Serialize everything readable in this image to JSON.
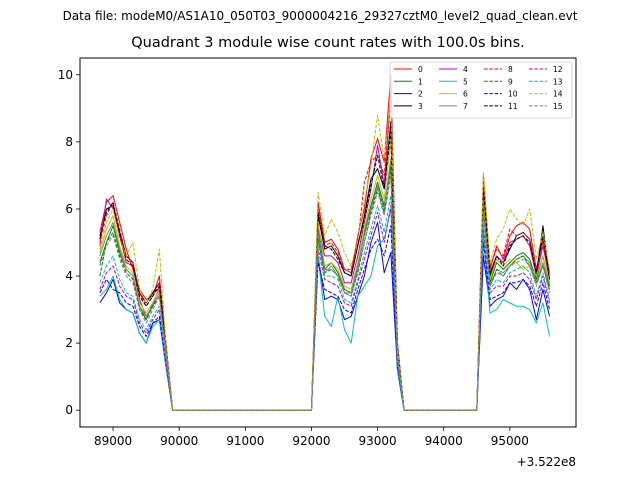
{
  "header": {
    "data_file": "Data file: modeM0/AS1A10_050T03_9000004216_29327cztM0_level2_quad_clean.evt",
    "title": "Quadrant 3 module wise count rates with 100.0s bins."
  },
  "chart_data": {
    "type": "line",
    "title": "Quadrant 3 module wise count rates with 100.0s bins.",
    "xlabel": "",
    "ylabel": "",
    "x_offset_label": "+3.522e8",
    "xlim": [
      88500,
      96000
    ],
    "ylim": [
      -0.5,
      10.5
    ],
    "xticks": [
      89000,
      90000,
      91000,
      92000,
      93000,
      94000,
      95000
    ],
    "xtick_labels": [
      "89000",
      "90000",
      "91000",
      "92000",
      "93000",
      "94000",
      "95000"
    ],
    "yticks": [
      0,
      2,
      4,
      6,
      8,
      10
    ],
    "ytick_labels": [
      "0",
      "2",
      "4",
      "6",
      "8",
      "10"
    ],
    "grid": false,
    "legend_position": "top-right",
    "legend_columns": 4,
    "x": [
      88800,
      88900,
      89000,
      89100,
      89200,
      89300,
      89400,
      89500,
      89600,
      89700,
      89800,
      89900,
      90000,
      92000,
      92100,
      92200,
      92300,
      92400,
      92500,
      92600,
      92700,
      92800,
      92900,
      93000,
      93100,
      93200,
      93300,
      93400,
      94500,
      94600,
      94700,
      94800,
      94900,
      95000,
      95100,
      95200,
      95300,
      95400,
      95500,
      95600
    ],
    "series": [
      {
        "name": "0",
        "color": "#ff0000",
        "dash": "solid",
        "values": [
          5.3,
          6.2,
          6.4,
          5.6,
          4.8,
          4.2,
          3.6,
          3.3,
          3.4,
          4.0,
          2.0,
          0.0,
          0.0,
          0.0,
          6.2,
          5.0,
          5.1,
          4.8,
          4.2,
          4.1,
          5.2,
          6.0,
          7.5,
          8.1,
          7.4,
          10.0,
          2.0,
          0.0,
          0.0,
          7.0,
          4.2,
          4.9,
          4.5,
          5.2,
          5.5,
          5.6,
          5.4,
          4.2,
          5.1,
          4.1
        ]
      },
      {
        "name": "1",
        "color": "#008000",
        "dash": "solid",
        "values": [
          4.4,
          5.0,
          5.5,
          4.7,
          4.2,
          4.0,
          3.1,
          2.7,
          3.2,
          3.6,
          1.8,
          0.0,
          0.0,
          0.0,
          5.4,
          4.2,
          4.4,
          4.1,
          3.6,
          3.5,
          4.2,
          5.3,
          6.1,
          6.8,
          6.1,
          7.3,
          1.6,
          0.0,
          0.0,
          6.2,
          3.8,
          4.4,
          4.2,
          4.4,
          4.6,
          4.7,
          4.5,
          3.9,
          4.6,
          3.7
        ]
      },
      {
        "name": "2",
        "color": "#0000ff",
        "dash": "solid",
        "values": [
          3.2,
          3.5,
          3.9,
          3.2,
          3.0,
          2.9,
          2.3,
          2.0,
          2.6,
          2.7,
          1.3,
          0.0,
          0.0,
          0.0,
          4.6,
          3.3,
          3.4,
          3.3,
          2.7,
          2.8,
          3.4,
          4.0,
          5.0,
          5.6,
          4.1,
          4.7,
          1.2,
          0.0,
          0.0,
          4.6,
          3.1,
          3.3,
          3.4,
          3.8,
          3.6,
          3.9,
          3.6,
          2.7,
          3.6,
          2.8
        ]
      },
      {
        "name": "3",
        "color": "#000000",
        "dash": "solid",
        "values": [
          5.1,
          6.0,
          6.1,
          5.3,
          4.6,
          4.4,
          3.5,
          3.2,
          3.5,
          3.8,
          1.9,
          0.0,
          0.0,
          0.0,
          5.8,
          4.8,
          4.9,
          4.6,
          4.1,
          4.0,
          4.9,
          5.8,
          6.9,
          7.2,
          6.6,
          8.6,
          1.9,
          0.0,
          0.0,
          6.5,
          4.0,
          4.6,
          4.4,
          4.8,
          5.2,
          5.3,
          5.1,
          4.0,
          5.5,
          3.9
        ]
      },
      {
        "name": "4",
        "color": "#bf00bf",
        "dash": "solid",
        "values": [
          4.9,
          6.3,
          6.0,
          5.2,
          4.4,
          4.3,
          3.3,
          2.8,
          3.1,
          3.7,
          1.8,
          0.0,
          0.0,
          0.0,
          5.5,
          4.6,
          4.6,
          4.4,
          3.8,
          3.8,
          4.6,
          5.6,
          6.6,
          7.9,
          6.7,
          9.5,
          1.8,
          0.0,
          0.0,
          6.6,
          4.1,
          4.6,
          4.4,
          5.0,
          5.1,
          5.2,
          4.9,
          4.0,
          4.9,
          3.9
        ]
      },
      {
        "name": "5",
        "color": "#00bfbf",
        "dash": "solid",
        "values": [
          3.4,
          3.6,
          4.0,
          3.3,
          3.0,
          2.9,
          2.3,
          2.0,
          2.5,
          2.7,
          1.3,
          0.0,
          0.0,
          0.0,
          4.6,
          2.8,
          2.5,
          3.4,
          2.4,
          2.0,
          3.4,
          3.7,
          4.0,
          4.9,
          5.1,
          6.0,
          1.2,
          0.0,
          0.0,
          5.3,
          2.9,
          3.0,
          3.3,
          3.2,
          3.1,
          3.1,
          3.0,
          2.6,
          3.2,
          2.2
        ]
      },
      {
        "name": "6",
        "color": "#bfbf00",
        "dash": "solid",
        "values": [
          4.7,
          5.4,
          5.8,
          4.9,
          4.3,
          4.1,
          3.2,
          2.9,
          3.2,
          3.6,
          1.8,
          0.0,
          0.0,
          0.0,
          5.6,
          4.3,
          4.4,
          4.2,
          3.7,
          3.6,
          4.4,
          5.4,
          6.3,
          7.0,
          6.3,
          8.0,
          1.7,
          0.0,
          0.0,
          6.3,
          3.9,
          4.5,
          4.3,
          4.5,
          4.4,
          4.2,
          4.3,
          4.0,
          4.6,
          3.8
        ]
      },
      {
        "name": "7",
        "color": "#808080",
        "dash": "solid",
        "values": [
          4.6,
          5.2,
          5.6,
          4.8,
          4.2,
          4.0,
          3.1,
          2.8,
          3.1,
          3.5,
          1.7,
          0.0,
          0.0,
          0.0,
          5.2,
          4.1,
          4.3,
          4.0,
          3.5,
          3.5,
          4.3,
          5.2,
          6.0,
          6.7,
          6.0,
          7.5,
          1.6,
          0.0,
          0.0,
          6.0,
          3.7,
          4.2,
          4.1,
          4.3,
          4.5,
          4.6,
          4.4,
          3.8,
          4.4,
          3.6
        ]
      },
      {
        "name": "8",
        "color": "#ff0000",
        "dash": "dashed",
        "values": [
          5.0,
          5.8,
          6.2,
          5.4,
          4.6,
          4.4,
          3.5,
          3.1,
          3.4,
          3.8,
          1.9,
          0.0,
          0.0,
          0.0,
          6.0,
          4.9,
          5.0,
          4.7,
          4.2,
          4.2,
          5.0,
          6.8,
          7.4,
          7.6,
          7.0,
          9.2,
          2.0,
          0.0,
          0.0,
          6.8,
          4.3,
          4.8,
          4.6,
          5.4,
          5.2,
          5.3,
          5.1,
          4.2,
          5.0,
          4.0
        ]
      },
      {
        "name": "9",
        "color": "#008000",
        "dash": "dashed",
        "values": [
          4.0,
          5.0,
          5.3,
          4.6,
          4.1,
          3.9,
          3.0,
          2.7,
          3.1,
          3.4,
          1.7,
          0.0,
          0.0,
          0.0,
          5.1,
          4.1,
          4.2,
          4.0,
          3.5,
          3.4,
          4.1,
          5.0,
          5.9,
          6.6,
          5.9,
          7.1,
          1.6,
          0.0,
          0.0,
          6.0,
          3.7,
          4.2,
          4.0,
          4.3,
          4.5,
          4.6,
          4.3,
          3.8,
          4.3,
          3.6
        ]
      },
      {
        "name": "10",
        "color": "#0000ff",
        "dash": "dashed",
        "values": [
          3.5,
          3.9,
          3.6,
          3.5,
          3.2,
          3.1,
          2.5,
          2.2,
          2.6,
          2.8,
          1.4,
          0.0,
          0.0,
          0.0,
          4.4,
          3.6,
          3.5,
          3.4,
          3.0,
          2.9,
          3.6,
          4.2,
          4.8,
          5.1,
          4.6,
          5.5,
          1.3,
          0.0,
          0.0,
          5.0,
          3.3,
          3.4,
          3.5,
          3.8,
          3.8,
          3.9,
          3.7,
          3.1,
          3.8,
          3.0
        ]
      },
      {
        "name": "11",
        "color": "#000000",
        "dash": "dashed",
        "values": [
          5.2,
          5.9,
          6.2,
          5.2,
          4.5,
          4.3,
          3.4,
          3.1,
          3.4,
          3.7,
          1.9,
          0.0,
          0.0,
          0.0,
          5.9,
          4.9,
          4.8,
          4.5,
          4.1,
          4.0,
          4.9,
          5.7,
          6.7,
          7.6,
          6.6,
          8.3,
          1.9,
          0.0,
          0.0,
          6.6,
          4.1,
          4.6,
          4.3,
          4.9,
          5.1,
          5.2,
          5.0,
          4.1,
          5.2,
          3.9
        ]
      },
      {
        "name": "12",
        "color": "#bf00bf",
        "dash": "dashed",
        "values": [
          3.6,
          4.1,
          4.3,
          3.7,
          3.4,
          3.3,
          2.6,
          2.3,
          2.7,
          3.0,
          1.5,
          0.0,
          0.0,
          0.0,
          4.8,
          3.9,
          3.8,
          3.7,
          3.2,
          3.1,
          3.8,
          4.5,
          5.2,
          5.9,
          5.0,
          6.1,
          1.4,
          0.0,
          0.0,
          5.4,
          3.5,
          3.7,
          3.7,
          4.0,
          4.0,
          4.1,
          3.9,
          3.3,
          4.0,
          3.2
        ]
      },
      {
        "name": "13",
        "color": "#00bfbf",
        "dash": "dashed",
        "values": [
          3.8,
          4.3,
          4.6,
          3.9,
          3.5,
          3.4,
          2.7,
          2.4,
          2.8,
          3.1,
          1.6,
          0.0,
          0.0,
          0.0,
          5.0,
          4.0,
          4.0,
          3.9,
          3.3,
          3.2,
          3.9,
          4.7,
          5.4,
          6.1,
          5.3,
          6.4,
          1.5,
          0.0,
          0.0,
          5.6,
          3.6,
          3.9,
          3.8,
          4.1,
          4.2,
          4.3,
          4.1,
          3.4,
          4.1,
          3.3
        ]
      },
      {
        "name": "14",
        "color": "#bfbf00",
        "dash": "dashed",
        "values": [
          4.8,
          5.6,
          6.0,
          5.1,
          4.6,
          5.0,
          3.6,
          3.2,
          3.6,
          4.8,
          1.9,
          0.0,
          0.0,
          0.0,
          6.5,
          5.2,
          5.7,
          5.3,
          4.7,
          4.3,
          5.1,
          6.2,
          7.3,
          8.8,
          7.5,
          9.3,
          1.9,
          0.0,
          0.0,
          7.1,
          4.4,
          5.1,
          5.4,
          6.0,
          5.7,
          5.5,
          6.0,
          4.5,
          5.3,
          4.2
        ]
      },
      {
        "name": "15",
        "color": "#808080",
        "dash": "dashed",
        "values": [
          4.3,
          4.9,
          5.2,
          4.5,
          4.0,
          3.8,
          3.0,
          2.6,
          3.0,
          3.4,
          1.7,
          0.0,
          0.0,
          0.0,
          5.3,
          4.2,
          4.2,
          4.0,
          3.5,
          3.4,
          4.2,
          5.0,
          5.8,
          6.5,
          5.8,
          7.0,
          1.6,
          0.0,
          0.0,
          5.9,
          3.7,
          4.1,
          4.0,
          4.3,
          4.4,
          4.5,
          4.3,
          3.7,
          4.3,
          3.5
        ]
      }
    ]
  }
}
